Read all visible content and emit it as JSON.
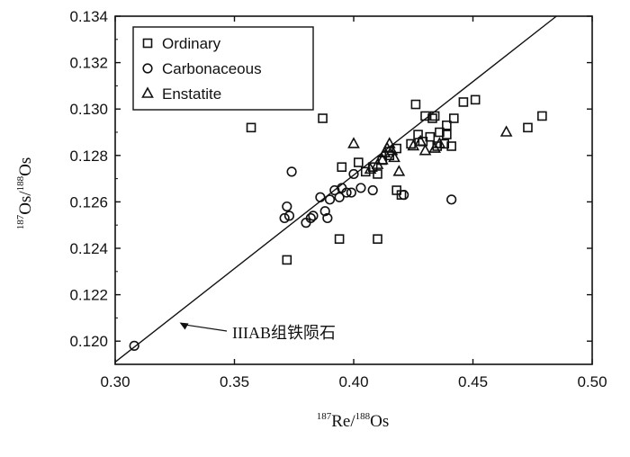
{
  "chart_data": {
    "type": "scatter",
    "title": "",
    "xlabel": {
      "sup1": "187",
      "main1": "Re/",
      "sup2": "188",
      "main2": "Os"
    },
    "ylabel": {
      "sup1": "187",
      "main1": "Os/",
      "sup2": "188",
      "main2": "Os"
    },
    "xlim": [
      0.3,
      0.5
    ],
    "ylim": [
      0.119,
      0.134
    ],
    "xticks": [
      "0.30",
      "0.35",
      "0.40",
      "0.45",
      "0.50"
    ],
    "yticks": [
      "0.120",
      "0.122",
      "0.124",
      "0.126",
      "0.128",
      "0.130",
      "0.132",
      "0.134"
    ],
    "grid": false,
    "legend_position": "top-left",
    "series": [
      {
        "name": "Ordinary",
        "marker": "square",
        "points": [
          [
            0.357,
            0.1292
          ],
          [
            0.387,
            0.1296
          ],
          [
            0.372,
            0.1235
          ],
          [
            0.394,
            0.1244
          ],
          [
            0.41,
            0.1244
          ],
          [
            0.395,
            0.1275
          ],
          [
            0.402,
            0.1277
          ],
          [
            0.405,
            0.1273
          ],
          [
            0.408,
            0.1275
          ],
          [
            0.41,
            0.1272
          ],
          [
            0.412,
            0.1278
          ],
          [
            0.415,
            0.128
          ],
          [
            0.418,
            0.1283
          ],
          [
            0.418,
            0.1265
          ],
          [
            0.42,
            0.1263
          ],
          [
            0.424,
            0.1285
          ],
          [
            0.426,
            0.1302
          ],
          [
            0.427,
            0.1289
          ],
          [
            0.429,
            0.1286
          ],
          [
            0.43,
            0.1297
          ],
          [
            0.432,
            0.1288
          ],
          [
            0.433,
            0.1296
          ],
          [
            0.434,
            0.1297
          ],
          [
            0.435,
            0.1284
          ],
          [
            0.436,
            0.129
          ],
          [
            0.438,
            0.1285
          ],
          [
            0.439,
            0.1289
          ],
          [
            0.439,
            0.1293
          ],
          [
            0.441,
            0.1284
          ],
          [
            0.442,
            0.1296
          ],
          [
            0.446,
            0.1303
          ],
          [
            0.451,
            0.1304
          ],
          [
            0.473,
            0.1292
          ],
          [
            0.479,
            0.1297
          ]
        ]
      },
      {
        "name": "Carbonaceous",
        "marker": "circle",
        "points": [
          [
            0.308,
            0.1198
          ],
          [
            0.371,
            0.1253
          ],
          [
            0.372,
            0.1258
          ],
          [
            0.373,
            0.1254
          ],
          [
            0.374,
            0.1273
          ],
          [
            0.38,
            0.1251
          ],
          [
            0.382,
            0.1253
          ],
          [
            0.383,
            0.1254
          ],
          [
            0.386,
            0.1262
          ],
          [
            0.388,
            0.1256
          ],
          [
            0.389,
            0.1253
          ],
          [
            0.39,
            0.1261
          ],
          [
            0.392,
            0.1265
          ],
          [
            0.394,
            0.1262
          ],
          [
            0.395,
            0.1266
          ],
          [
            0.397,
            0.1264
          ],
          [
            0.399,
            0.1264
          ],
          [
            0.4,
            0.1272
          ],
          [
            0.403,
            0.1266
          ],
          [
            0.408,
            0.1265
          ],
          [
            0.421,
            0.1263
          ],
          [
            0.441,
            0.1261
          ]
        ]
      },
      {
        "name": "Enstatite",
        "marker": "triangle",
        "points": [
          [
            0.4,
            0.1285
          ],
          [
            0.407,
            0.1274
          ],
          [
            0.41,
            0.1276
          ],
          [
            0.412,
            0.1278
          ],
          [
            0.413,
            0.1281
          ],
          [
            0.414,
            0.1283
          ],
          [
            0.415,
            0.1285
          ],
          [
            0.416,
            0.1282
          ],
          [
            0.417,
            0.1279
          ],
          [
            0.419,
            0.1273
          ],
          [
            0.425,
            0.1284
          ],
          [
            0.428,
            0.1286
          ],
          [
            0.43,
            0.1282
          ],
          [
            0.434,
            0.1283
          ],
          [
            0.436,
            0.1285
          ],
          [
            0.464,
            0.129
          ]
        ]
      }
    ],
    "reference_line": {
      "label": "IIIAB组铁陨石",
      "from": [
        0.3,
        0.1191
      ],
      "to": [
        0.485,
        0.134
      ]
    }
  }
}
